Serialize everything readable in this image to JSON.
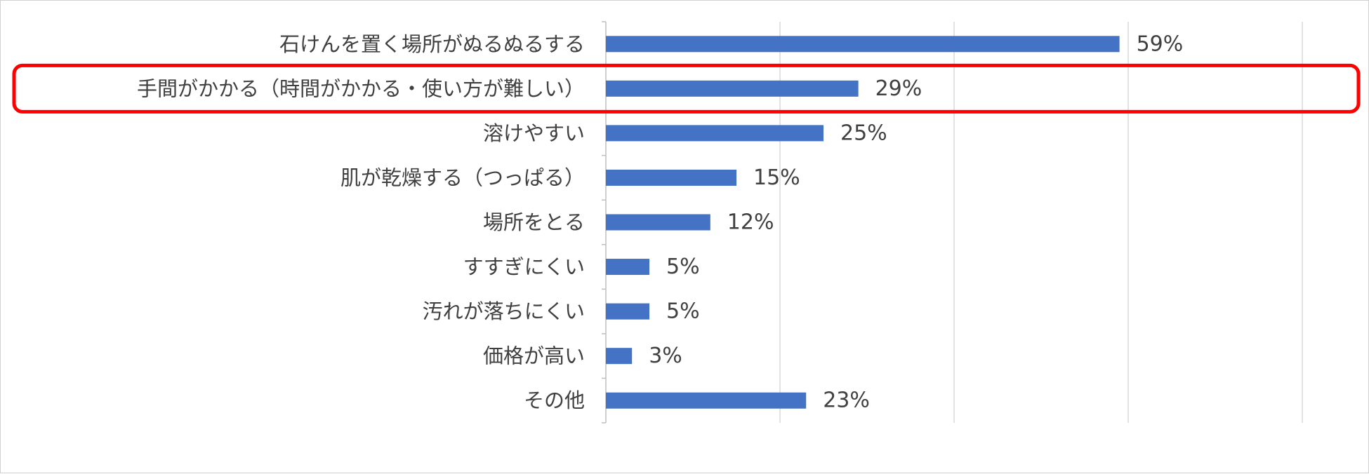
{
  "chart_data": {
    "type": "bar",
    "orientation": "horizontal",
    "categories": [
      "石けんを置く場所がぬるぬるする",
      "手間がかかる（時間がかかる・使い方が難しい）",
      "溶けやすい",
      "肌が乾燥する（つっぱる）",
      "場所をとる",
      "すすぎにくい",
      "汚れが落ちにくい",
      "価格が高い",
      "その他"
    ],
    "values": [
      59,
      29,
      25,
      15,
      12,
      5,
      5,
      3,
      23
    ],
    "value_labels": [
      "59%",
      "29%",
      "25%",
      "15%",
      "12%",
      "5%",
      "5%",
      "3%",
      "23%"
    ],
    "xlim": [
      0,
      80
    ],
    "grid": true,
    "highlighted_category": "手間がかかる（時間がかかる・使い方が難しい）",
    "colors": {
      "bar": "#4472c4",
      "grid": "#d9d9d9",
      "highlight": "#ff0000"
    }
  }
}
